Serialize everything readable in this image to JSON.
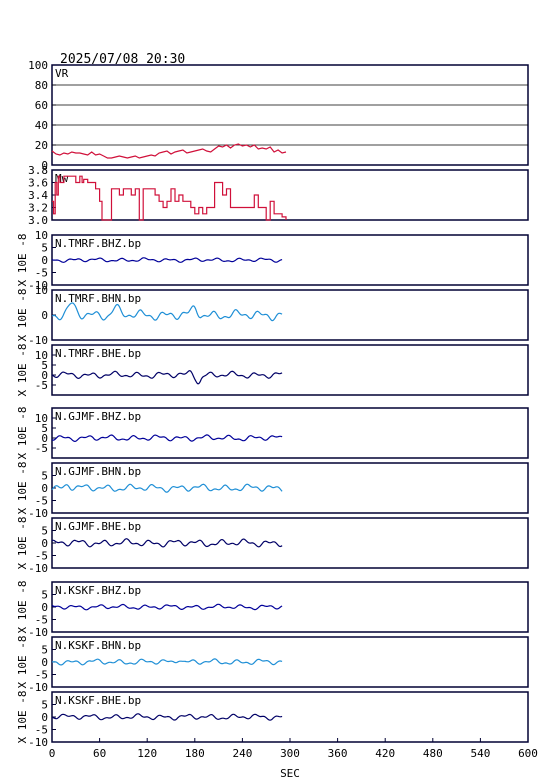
{
  "title": "2025/07/08 20:30",
  "x_label": "SEC",
  "x_ticks": [
    "0",
    "60",
    "120",
    "180",
    "240",
    "300",
    "360",
    "420",
    "480",
    "540",
    "600"
  ],
  "wave_unit_label": "X 10E -8",
  "colors": {
    "frame": "#000033",
    "vr": "#d0103a",
    "mw": "#d0103a",
    "bhz": "#000099",
    "bhn": "#1f8fd6",
    "bhe": "#000066"
  },
  "chart_data": {
    "type": "line",
    "xlim": [
      0,
      600
    ],
    "panels": [
      {
        "id": "vr",
        "label": "VR",
        "ylim": [
          0,
          100
        ],
        "yticks": [
          "100",
          "80",
          "60",
          "40",
          "20",
          "0"
        ],
        "grid": true,
        "color_key": "vr",
        "x": [
          0,
          5,
          10,
          15,
          20,
          25,
          30,
          35,
          40,
          45,
          50,
          55,
          60,
          65,
          70,
          75,
          80,
          85,
          90,
          95,
          100,
          105,
          110,
          115,
          120,
          125,
          130,
          135,
          140,
          145,
          150,
          155,
          160,
          165,
          170,
          175,
          180,
          185,
          190,
          195,
          200,
          205,
          210,
          215,
          220,
          225,
          230,
          235,
          240,
          245,
          250,
          255,
          260,
          265,
          270,
          275,
          280,
          285,
          290,
          295
        ],
        "y": [
          14,
          11,
          10,
          12,
          11,
          13,
          12,
          12,
          11,
          10,
          13,
          10,
          11,
          9,
          7,
          7,
          8,
          9,
          8,
          7,
          8,
          9,
          7,
          8,
          9,
          10,
          9,
          12,
          13,
          14,
          11,
          13,
          14,
          15,
          12,
          13,
          14,
          15,
          16,
          14,
          13,
          16,
          19,
          18,
          20,
          17,
          20,
          21,
          19,
          20,
          18,
          20,
          16,
          17,
          16,
          18,
          13,
          15,
          12,
          13
        ]
      },
      {
        "id": "mw",
        "label": "Mw",
        "ylim": [
          3.0,
          3.8
        ],
        "yticks": [
          "3.8",
          "3.6",
          "3.4",
          "3.2",
          "3.0"
        ],
        "grid": false,
        "color_key": "mw",
        "x": [
          0,
          2,
          4,
          6,
          8,
          10,
          15,
          20,
          25,
          30,
          35,
          38,
          40,
          45,
          50,
          55,
          60,
          63,
          65,
          70,
          75,
          80,
          85,
          90,
          95,
          100,
          105,
          110,
          115,
          120,
          125,
          130,
          135,
          140,
          145,
          150,
          155,
          160,
          165,
          170,
          175,
          180,
          185,
          190,
          195,
          200,
          205,
          210,
          215,
          220,
          225,
          230,
          235,
          240,
          245,
          250,
          255,
          260,
          265,
          270,
          275,
          280,
          285,
          290,
          295
        ],
        "y": [
          3.3,
          3.1,
          3.6,
          3.4,
          3.7,
          3.6,
          3.7,
          3.7,
          3.7,
          3.6,
          3.7,
          3.6,
          3.65,
          3.6,
          3.6,
          3.5,
          3.3,
          3.0,
          3.0,
          3.0,
          3.5,
          3.5,
          3.4,
          3.5,
          3.5,
          3.4,
          3.5,
          3.0,
          3.5,
          3.5,
          3.5,
          3.4,
          3.3,
          3.2,
          3.3,
          3.5,
          3.3,
          3.4,
          3.3,
          3.3,
          3.2,
          3.1,
          3.2,
          3.1,
          3.2,
          3.2,
          3.6,
          3.6,
          3.4,
          3.5,
          3.2,
          3.2,
          3.2,
          3.2,
          3.2,
          3.2,
          3.4,
          3.2,
          3.2,
          3.0,
          3.3,
          3.1,
          3.1,
          3.05,
          3.0
        ]
      },
      {
        "id": "tmrf_bhz",
        "label": "N.TMRF.BHZ.bp",
        "ylim": [
          -10,
          10
        ],
        "yticks": [
          "10",
          "5",
          "0",
          "-5",
          "-10"
        ],
        "grid": false,
        "color_key": "bhz",
        "amp": 0.5,
        "bumps": []
      },
      {
        "id": "tmrf_bhn",
        "label": "N.TMRF.BHN.bp",
        "ylim": [
          -10,
          10
        ],
        "yticks": [
          "10",
          "0",
          "-10"
        ],
        "grid": false,
        "color_key": "bhn",
        "amp": 1.2,
        "bumps": [
          [
            25,
            4,
            6
          ],
          [
            80,
            3,
            6
          ],
          [
            180,
            2.5,
            5
          ]
        ]
      },
      {
        "id": "tmrf_bhe",
        "label": "N.TMRF.BHE.bp",
        "ylim": [
          -10,
          15
        ],
        "yticks": [
          "10",
          "5",
          "0",
          "-5"
        ],
        "grid": false,
        "color_key": "bhe",
        "amp": 1.0,
        "bumps": [
          [
            185,
            -3.5,
            4
          ],
          [
            175,
            1.5,
            4
          ]
        ]
      },
      {
        "id": "gjmf_bhz",
        "label": "N.GJMF.BHZ.bp",
        "ylim": [
          -10,
          15
        ],
        "yticks": [
          "10",
          "5",
          "0",
          "-5"
        ],
        "grid": false,
        "color_key": "bhz",
        "amp": 0.9,
        "bumps": []
      },
      {
        "id": "gjmf_bhn",
        "label": "N.GJMF.BHN.bp",
        "ylim": [
          -10,
          10
        ],
        "yticks": [
          "5",
          "0",
          "-5",
          "-10"
        ],
        "grid": false,
        "color_key": "bhn",
        "amp": 0.9,
        "bumps": [
          [
            20,
            1.5,
            5
          ]
        ]
      },
      {
        "id": "gjmf_bhe",
        "label": "N.GJMF.BHE.bp",
        "ylim": [
          -10,
          10
        ],
        "yticks": [
          "5",
          "0",
          "-5",
          "-10"
        ],
        "grid": false,
        "color_key": "bhe",
        "amp": 0.9,
        "bumps": []
      },
      {
        "id": "kskf_bhz",
        "label": "N.KSKF.BHZ.bp",
        "ylim": [
          -10,
          10
        ],
        "yticks": [
          "5",
          "0",
          "-5",
          "-10"
        ],
        "grid": false,
        "color_key": "bhz",
        "amp": 0.6,
        "bumps": []
      },
      {
        "id": "kskf_bhn",
        "label": "N.KSKF.BHN.bp",
        "ylim": [
          -10,
          10
        ],
        "yticks": [
          "5",
          "0",
          "-5",
          "-10"
        ],
        "grid": false,
        "color_key": "bhn",
        "amp": 0.7,
        "bumps": [
          [
            160,
            1.5,
            4
          ]
        ]
      },
      {
        "id": "kskf_bhe",
        "label": "N.KSKF.BHE.bp",
        "ylim": [
          -10,
          10
        ],
        "yticks": [
          "5",
          "0",
          "-5",
          "-10"
        ],
        "grid": false,
        "color_key": "bhe",
        "amp": 0.7,
        "bumps": [
          [
            10,
            1.0,
            5
          ]
        ]
      }
    ]
  }
}
